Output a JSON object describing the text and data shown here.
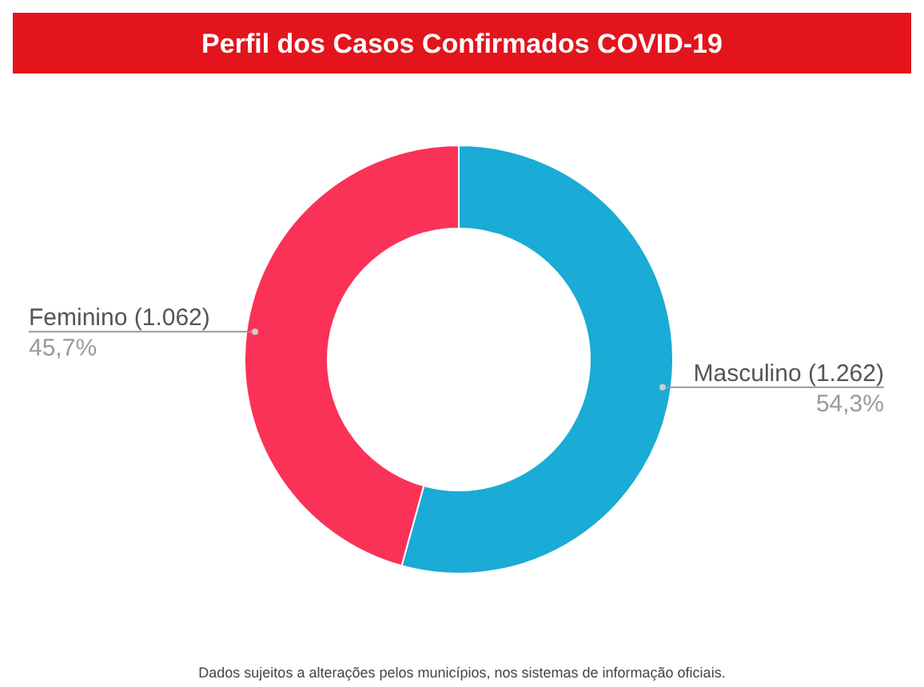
{
  "chart_data": {
    "type": "donut",
    "title": "Perfil dos Casos Confirmados COVID-19",
    "categories": [
      "Masculino (1.262)",
      "Feminino (1.062)"
    ],
    "values": [
      54.3,
      45.7
    ],
    "colors": [
      "#1aabd6",
      "#fb3258"
    ],
    "value_labels": [
      "54,3%",
      "45,7%"
    ],
    "annotations": [
      "Dados sujeitos a alterações pelos municípios, nos sistemas de informação oficiais."
    ]
  }
}
